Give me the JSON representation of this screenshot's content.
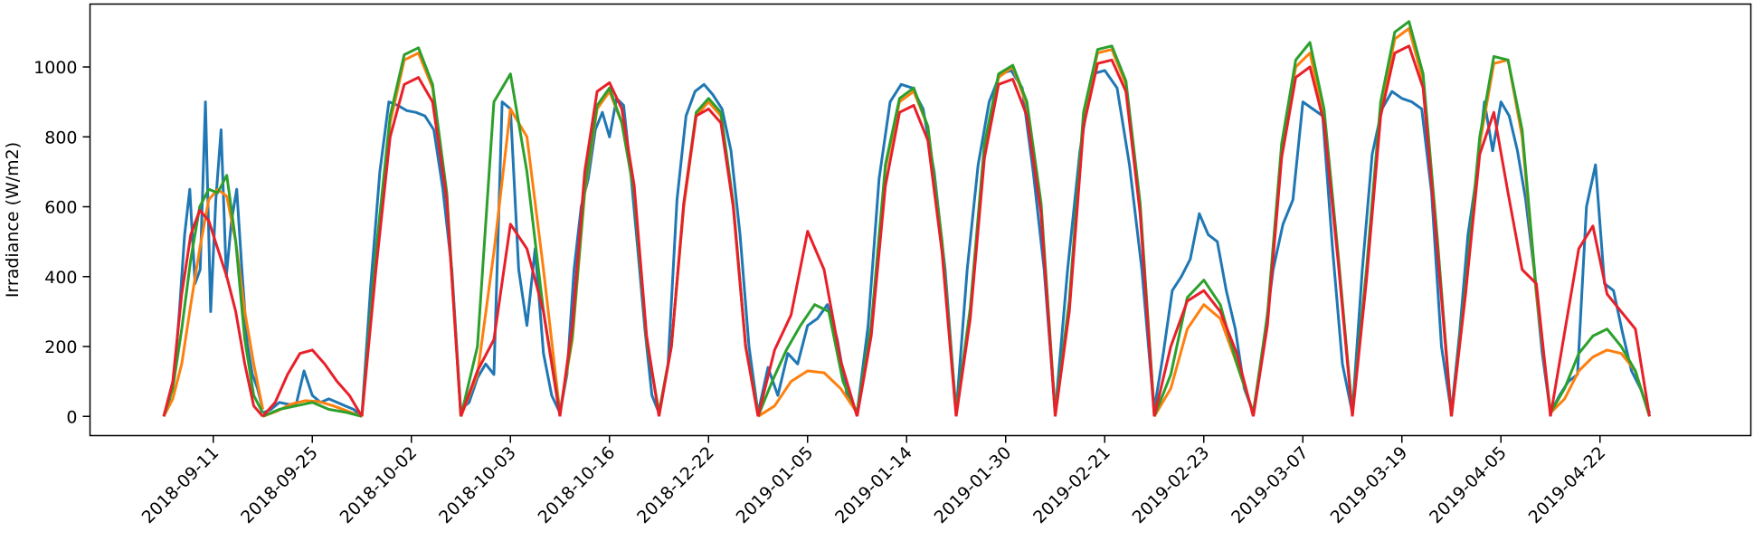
{
  "chart_data": {
    "type": "line",
    "ylabel": "Irradiance (W/m2)",
    "xlabel": "",
    "title": "",
    "ylim": [
      -55,
      1180
    ],
    "yticks": [
      0,
      200,
      400,
      600,
      800,
      1000
    ],
    "grid": false,
    "legend": "none",
    "days": [
      "2018-09-11",
      "2018-09-25",
      "2018-10-02",
      "2018-10-03",
      "2018-10-16",
      "2018-12-22",
      "2019-01-05",
      "2019-01-14",
      "2019-01-30",
      "2019-02-21",
      "2019-02-23",
      "2019-03-07",
      "2019-03-19",
      "2019-04-05",
      "2019-04-22"
    ],
    "colors": {
      "measured": "#1f77b4",
      "orange": "#ff7f0e",
      "green": "#2ca02c",
      "red": "#e8202a"
    },
    "series": [
      {
        "key": "measured",
        "days": [
          [
            0,
            40,
            110,
            300,
            520,
            650,
            380,
            420,
            900,
            300,
            620,
            820,
            400,
            560,
            650,
            420,
            210,
            120,
            80,
            20
          ],
          [
            10,
            20,
            40,
            35,
            30,
            130,
            60,
            40,
            50,
            40,
            30,
            20,
            0
          ],
          [
            0,
            380,
            700,
            900,
            890,
            875,
            870,
            860,
            820,
            650,
            420,
            10
          ],
          [
            20,
            40,
            110,
            150,
            120,
            900,
            880,
            420,
            260,
            480,
            180,
            60,
            10
          ],
          [
            10,
            120,
            420,
            600,
            680,
            820,
            870,
            800,
            910,
            890,
            700,
            480,
            250,
            60,
            10
          ],
          [
            10,
            150,
            620,
            860,
            930,
            950,
            920,
            880,
            760,
            520,
            200,
            10
          ],
          [
            10,
            140,
            60,
            180,
            150,
            260,
            280,
            320,
            220,
            60,
            10
          ],
          [
            10,
            260,
            680,
            900,
            950,
            940,
            880,
            700,
            420,
            10
          ],
          [
            10,
            420,
            720,
            900,
            980,
            990,
            940,
            700,
            420,
            10
          ],
          [
            10,
            420,
            760,
            980,
            990,
            940,
            720,
            420,
            10
          ],
          [
            20,
            180,
            360,
            400,
            450,
            580,
            520,
            500,
            360,
            250,
            80,
            10
          ],
          [
            10,
            200,
            420,
            550,
            620,
            900,
            880,
            860,
            480,
            150,
            10
          ],
          [
            10,
            420,
            750,
            880,
            930,
            910,
            900,
            880,
            640,
            200,
            10
          ],
          [
            10,
            240,
            520,
            680,
            900,
            760,
            900,
            860,
            760,
            620,
            420,
            180,
            10
          ],
          [
            10,
            60,
            100,
            120,
            600,
            720,
            380,
            360,
            240,
            130,
            80,
            10
          ]
        ]
      },
      {
        "key": "orange",
        "days": [
          [
            0,
            50,
            150,
            320,
            480,
            620,
            650,
            630,
            500,
            300,
            150,
            20
          ],
          [
            0,
            15,
            35,
            45,
            42,
            30,
            15,
            0
          ],
          [
            0,
            460,
            840,
            1020,
            1040,
            940,
            620,
            0
          ],
          [
            0,
            120,
            470,
            880,
            800,
            420,
            10
          ],
          [
            10,
            220,
            640,
            880,
            930,
            840,
            640,
            220,
            10
          ],
          [
            10,
            200,
            600,
            860,
            900,
            860,
            600,
            200,
            10
          ],
          [
            0,
            30,
            100,
            130,
            125,
            80,
            10
          ],
          [
            10,
            250,
            710,
            900,
            930,
            830,
            500,
            10
          ],
          [
            10,
            300,
            770,
            970,
            1000,
            890,
            600,
            10
          ],
          [
            10,
            320,
            860,
            1040,
            1050,
            950,
            600,
            10
          ],
          [
            0,
            80,
            250,
            320,
            280,
            150,
            10
          ],
          [
            10,
            280,
            760,
            1000,
            1040,
            860,
            450,
            10
          ],
          [
            10,
            400,
            880,
            1080,
            1110,
            960,
            500,
            0
          ],
          [
            0,
            350,
            780,
            1010,
            1020,
            800,
            350,
            10
          ],
          [
            10,
            50,
            130,
            170,
            190,
            180,
            130,
            0
          ]
        ]
      },
      {
        "key": "green",
        "days": [
          [
            0,
            80,
            250,
            450,
            600,
            650,
            640,
            690,
            500,
            220,
            60,
            10
          ],
          [
            0,
            20,
            30,
            40,
            20,
            12,
            0
          ],
          [
            0,
            470,
            860,
            1035,
            1055,
            950,
            640,
            0
          ],
          [
            0,
            200,
            900,
            980,
            700,
            300,
            10
          ],
          [
            10,
            230,
            650,
            890,
            940,
            840,
            640,
            220,
            10
          ],
          [
            10,
            200,
            610,
            870,
            910,
            870,
            610,
            200,
            10
          ],
          [
            0,
            100,
            190,
            260,
            320,
            300,
            100,
            10
          ],
          [
            10,
            260,
            720,
            910,
            940,
            830,
            500,
            10
          ],
          [
            10,
            310,
            780,
            980,
            1005,
            900,
            610,
            10
          ],
          [
            10,
            330,
            870,
            1050,
            1060,
            960,
            610,
            10
          ],
          [
            0,
            120,
            340,
            390,
            320,
            150,
            10
          ],
          [
            10,
            290,
            780,
            1020,
            1070,
            880,
            460,
            10
          ],
          [
            10,
            420,
            900,
            1100,
            1130,
            980,
            510,
            0
          ],
          [
            0,
            370,
            800,
            1030,
            1020,
            820,
            360,
            10
          ],
          [
            10,
            80,
            180,
            230,
            250,
            200,
            130,
            0
          ]
        ]
      },
      {
        "key": "red",
        "days": [
          [
            0,
            100,
            350,
            520,
            590,
            560,
            480,
            400,
            300,
            150,
            30,
            0
          ],
          [
            0,
            40,
            120,
            180,
            190,
            150,
            100,
            60,
            0
          ],
          [
            0,
            420,
            800,
            950,
            970,
            900,
            620,
            0
          ],
          [
            0,
            130,
            220,
            550,
            480,
            300,
            0
          ],
          [
            0,
            260,
            700,
            930,
            955,
            880,
            660,
            230,
            0
          ],
          [
            0,
            200,
            610,
            860,
            880,
            840,
            600,
            200,
            0
          ],
          [
            0,
            190,
            290,
            530,
            420,
            160,
            0
          ],
          [
            0,
            230,
            660,
            870,
            890,
            790,
            470,
            0
          ],
          [
            0,
            280,
            740,
            950,
            965,
            860,
            580,
            0
          ],
          [
            0,
            300,
            830,
            1010,
            1020,
            930,
            580,
            0
          ],
          [
            0,
            200,
            330,
            360,
            300,
            180,
            0
          ],
          [
            0,
            260,
            740,
            970,
            1000,
            840,
            440,
            0
          ],
          [
            0,
            390,
            860,
            1040,
            1060,
            940,
            480,
            0
          ],
          [
            0,
            350,
            750,
            870,
            640,
            420,
            380,
            0
          ],
          [
            0,
            240,
            480,
            545,
            350,
            300,
            250,
            0
          ]
        ]
      }
    ]
  }
}
